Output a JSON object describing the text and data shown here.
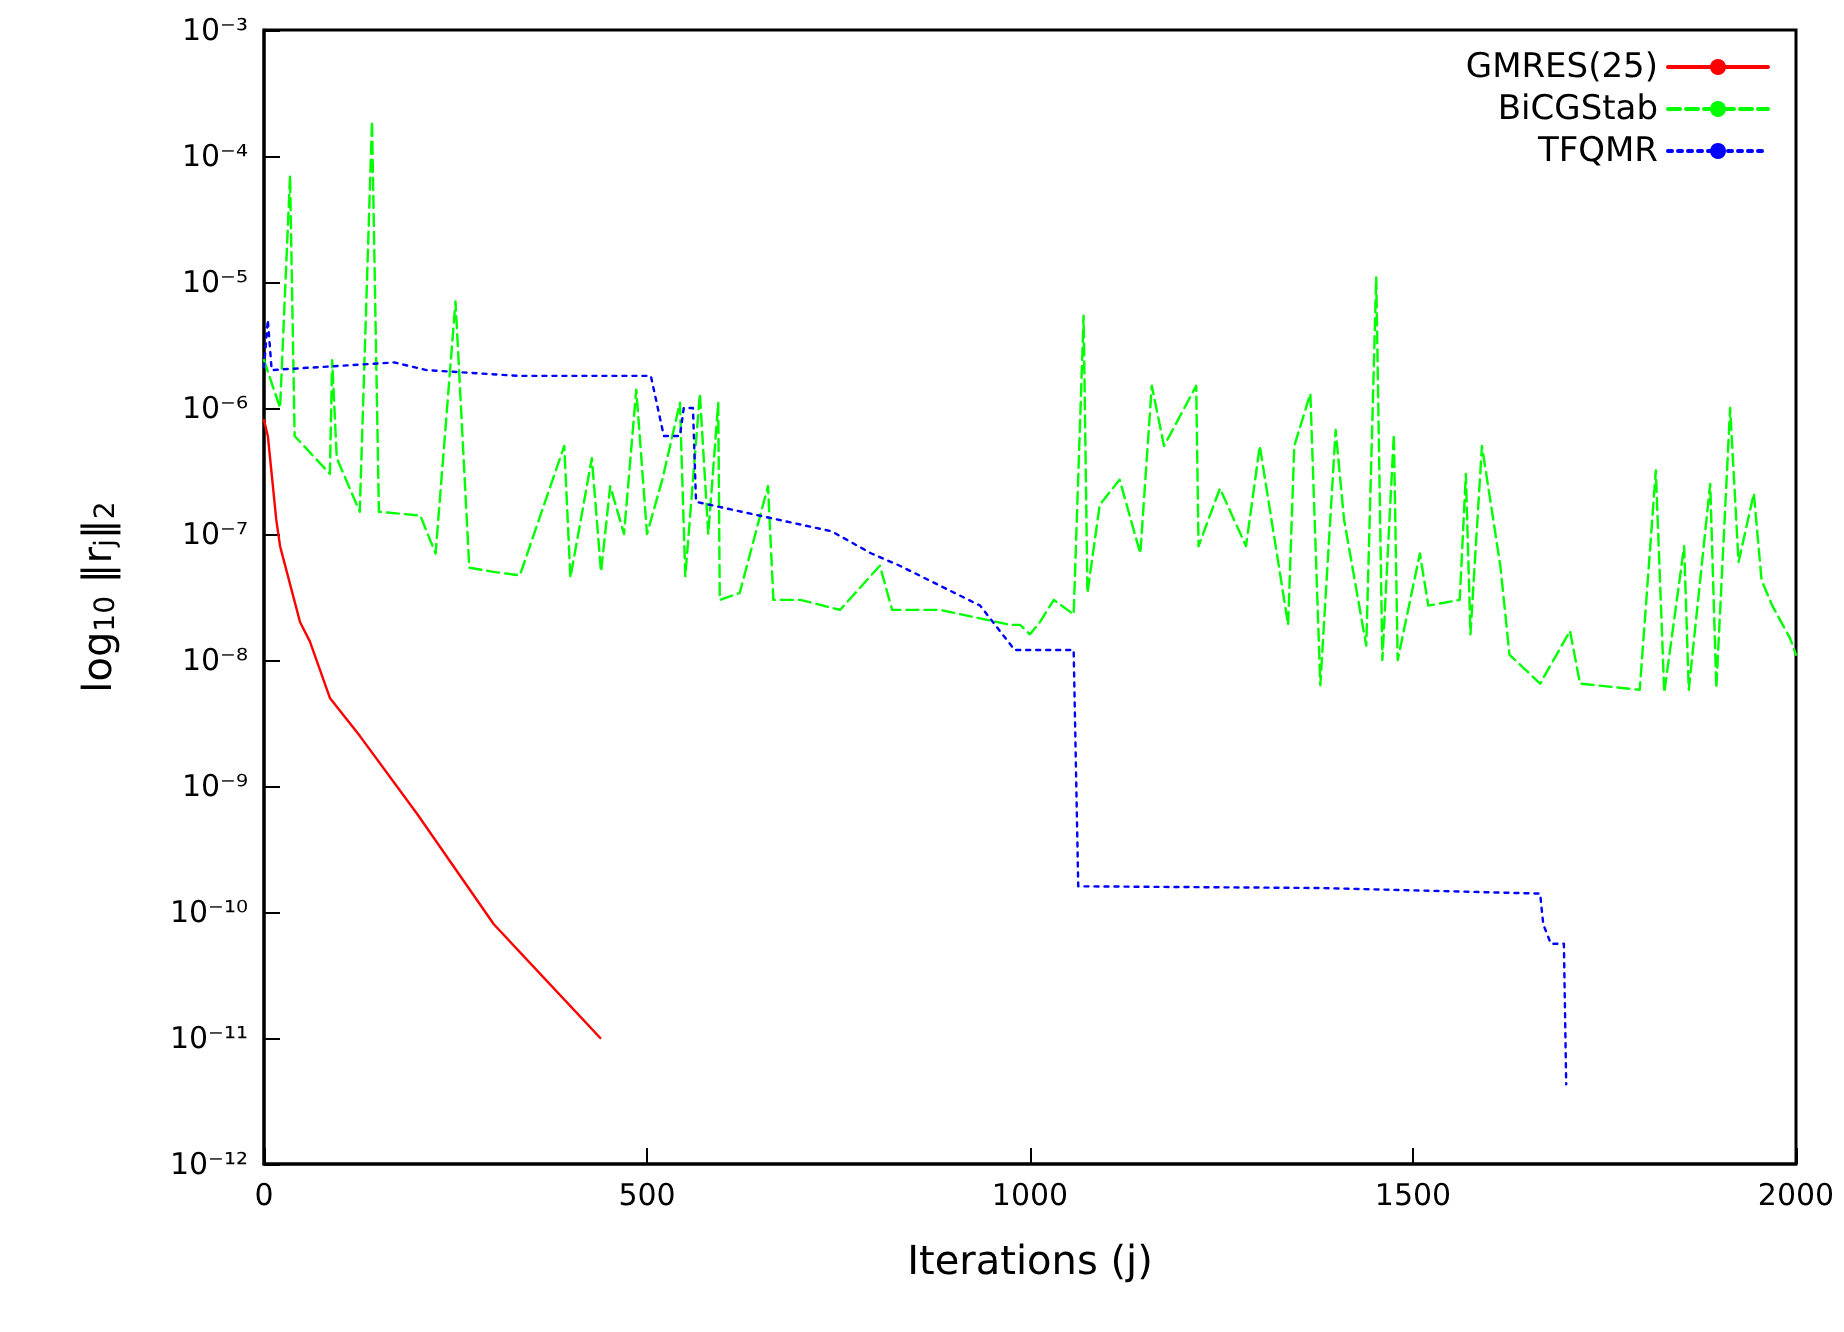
{
  "chart_data": {
    "type": "line",
    "xlabel": "Iterations (j)",
    "ylabel": "log$_{10}$ ‖r$_{j}$‖$_{2}$",
    "xlim": [
      0,
      2000
    ],
    "xticks": [
      0,
      500,
      1000,
      1500,
      2000
    ],
    "ylim": [
      1e-12,
      0.001
    ],
    "log": "y",
    "yticks": [
      {
        "value": 1e-12,
        "label": "10⁻¹²"
      },
      {
        "value": 1e-11,
        "label": "10⁻¹¹"
      },
      {
        "value": 1e-10,
        "label": "10⁻¹⁰"
      },
      {
        "value": 1e-09,
        "label": "10⁻⁹"
      },
      {
        "value": 1e-08,
        "label": "10⁻⁸"
      },
      {
        "value": 1e-07,
        "label": "10⁻⁷"
      },
      {
        "value": 1e-06,
        "label": "10⁻⁶"
      },
      {
        "value": 1e-05,
        "label": "10⁻⁵"
      },
      {
        "value": 0.0001,
        "label": "10⁻⁴"
      },
      {
        "value": 0.001,
        "label": "10⁻³"
      }
    ],
    "grid": false,
    "legend": "top right",
    "marker": "none",
    "series": [
      {
        "name": "GMRES(25)",
        "color": "#ff0000",
        "line_style": "solid",
        "x": [
          0,
          5,
          10,
          16,
          21,
          34,
          47,
          60,
          86,
          125,
          200,
          300,
          439
        ],
        "values": [
          8e-07,
          6e-07,
          3e-07,
          1.3e-07,
          8e-08,
          4e-08,
          2e-08,
          1.4e-08,
          5e-09,
          2.5e-09,
          6e-10,
          8e-11,
          1e-11
        ]
      },
      {
        "name": "BiCGStab",
        "color": "#00ff00",
        "line_style": "dashed",
        "x": [
          0,
          21,
          34,
          40,
          86,
          89,
          95,
          125,
          141,
          150,
          204,
          224,
          250,
          268,
          300,
          334,
          392,
          400,
          428,
          440,
          452,
          470,
          486,
          500,
          520,
          543,
          550,
          569,
          580,
          593,
          595,
          621,
          658,
          665,
          700,
          752,
          804,
          820,
          882,
          974,
          987,
          1000,
          1013,
          1031,
          1057,
          1070,
          1075,
          1091,
          1117,
          1144,
          1159,
          1175,
          1217,
          1220,
          1248,
          1282,
          1300,
          1337,
          1345,
          1366,
          1379,
          1399,
          1410,
          1439,
          1452,
          1460,
          1475,
          1480,
          1509,
          1520,
          1561,
          1569,
          1575,
          1590,
          1614,
          1626,
          1666,
          1705,
          1718,
          1796,
          1817,
          1828,
          1854,
          1860,
          1888,
          1896,
          1914,
          1925,
          1945,
          1955,
          1969,
          1992,
          2000
        ],
        "values": [
          2.4e-06,
          1e-06,
          7e-05,
          6e-07,
          3e-07,
          2.4e-06,
          4e-07,
          1.5e-07,
          0.00019,
          1.5e-07,
          1.4e-07,
          7e-08,
          7e-06,
          5.4e-08,
          5e-08,
          4.7e-08,
          5e-07,
          4.5e-08,
          4e-07,
          5e-08,
          2.4e-07,
          1e-07,
          1.4e-06,
          1e-07,
          2.7e-07,
          1.1e-06,
          4.6e-08,
          1.3e-06,
          1e-07,
          1.1e-06,
          3e-08,
          3.4e-08,
          2.4e-07,
          3e-08,
          3e-08,
          2.5e-08,
          5.6e-08,
          2.5e-08,
          2.5e-08,
          1.9e-08,
          1.9e-08,
          1.6e-08,
          2e-08,
          3e-08,
          2.3e-08,
          5.4e-06,
          3.4e-08,
          1.7e-07,
          2.7e-07,
          7e-08,
          1.5e-06,
          5e-07,
          1.5e-06,
          8e-08,
          2.3e-07,
          8e-08,
          5e-07,
          1.9e-08,
          5e-07,
          1.3e-06,
          6.3e-09,
          6.7e-07,
          1.3e-07,
          1.3e-08,
          1.1e-05,
          1e-08,
          6.2e-07,
          1e-08,
          7e-08,
          2.7e-08,
          3e-08,
          3e-07,
          1.6e-08,
          5e-07,
          5.6e-08,
          1.1e-08,
          6.5e-09,
          1.7e-08,
          6.5e-09,
          5.8e-09,
          3.2e-07,
          5.5e-09,
          8e-08,
          5.8e-09,
          2.5e-07,
          6e-09,
          1e-06,
          6e-08,
          2.1e-07,
          4.3e-08,
          2.7e-08,
          1.5e-08,
          1.1e-08
        ]
      },
      {
        "name": "TFQMR",
        "color": "#0000ff",
        "line_style": "dotted",
        "x": [
          0,
          5,
          10,
          170,
          212,
          330,
          505,
          522,
          543,
          548,
          560,
          564,
          741,
          793,
          830,
          935,
          980,
          987,
          1057,
          1063,
          1379,
          1666,
          1670,
          1680,
          1697,
          1700
        ],
        "values": [
          2.1e-06,
          5e-06,
          2e-06,
          2.3e-06,
          2e-06,
          1.8e-06,
          1.8e-06,
          6e-07,
          6e-07,
          1e-06,
          1e-06,
          1.8e-07,
          1.05e-07,
          7e-08,
          5.6e-08,
          2.7e-08,
          1.2e-08,
          1.2e-08,
          1.2e-08,
          1.6e-10,
          1.55e-10,
          1.4e-10,
          8e-11,
          5.6e-11,
          5.6e-11,
          4.3e-12
        ]
      }
    ]
  }
}
